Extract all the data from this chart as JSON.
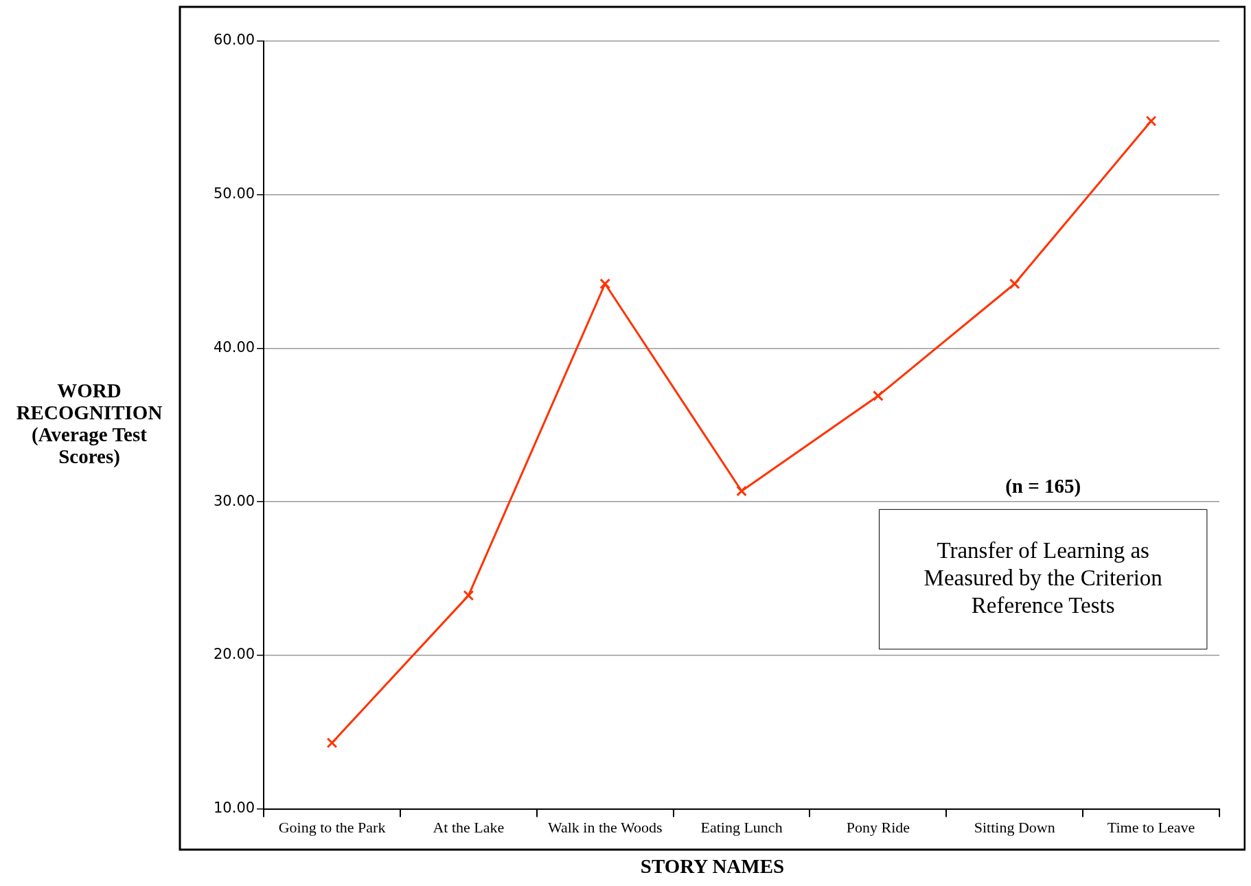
{
  "chart_data": {
    "type": "line",
    "title": "Transfer of Learning as Measured by the Criterion Reference Tests",
    "xlabel": "STORY NAMES",
    "ylabel": "WORD RECOGNITION (Average Test Scores)",
    "annotations": [
      "(n = 165)"
    ],
    "categories": [
      "Going to the Park",
      "At the Lake",
      "Walk in the Woods",
      "Eating Lunch",
      "Pony Ride",
      "Sitting Down",
      "Time to Leave"
    ],
    "series": [
      {
        "color": "#ff3300",
        "values": [
          14.3,
          23.9,
          44.2,
          30.7,
          36.9,
          44.2,
          54.8
        ]
      }
    ],
    "ylim": [
      10,
      60
    ],
    "yticks": [
      {
        "value": 10,
        "label": "10.00"
      },
      {
        "value": 20,
        "label": "20.00"
      },
      {
        "value": 30,
        "label": "30.00"
      },
      {
        "value": 40,
        "label": "40.00"
      },
      {
        "value": 50,
        "label": "50.00"
      },
      {
        "value": 60,
        "label": "60.00"
      }
    ],
    "grid": "y",
    "legend": false,
    "marker": "cross",
    "line_style": "solid"
  }
}
